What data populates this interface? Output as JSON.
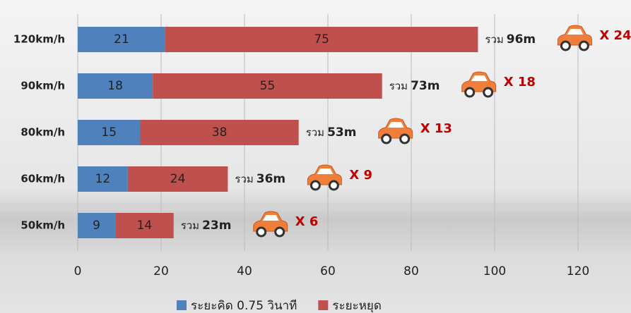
{
  "chart_data": {
    "type": "bar",
    "orientation": "horizontal",
    "stacked": true,
    "categories": [
      "120km/h",
      "90km/h",
      "80km/h",
      "60km/h",
      "50km/h"
    ],
    "series": [
      {
        "name": "ระยะคิด 0.75 วินาที",
        "color": "#4f81bd",
        "values": [
          21,
          18,
          15,
          12,
          9
        ]
      },
      {
        "name": "ระยะหยุด",
        "color": "#c0504d",
        "values": [
          75,
          55,
          38,
          24,
          14
        ]
      }
    ],
    "total_prefix": "รวม",
    "total_labels": [
      "96m",
      "73m",
      "53m",
      "36m",
      "23m"
    ],
    "multiplier_labels": [
      "X 24",
      "X 18",
      "X 13",
      "X 9",
      "X 6"
    ],
    "xlim": [
      0,
      120
    ],
    "xticks": [
      0,
      20,
      40,
      60,
      80,
      100,
      120
    ],
    "grid": true,
    "legend": "bottom"
  }
}
